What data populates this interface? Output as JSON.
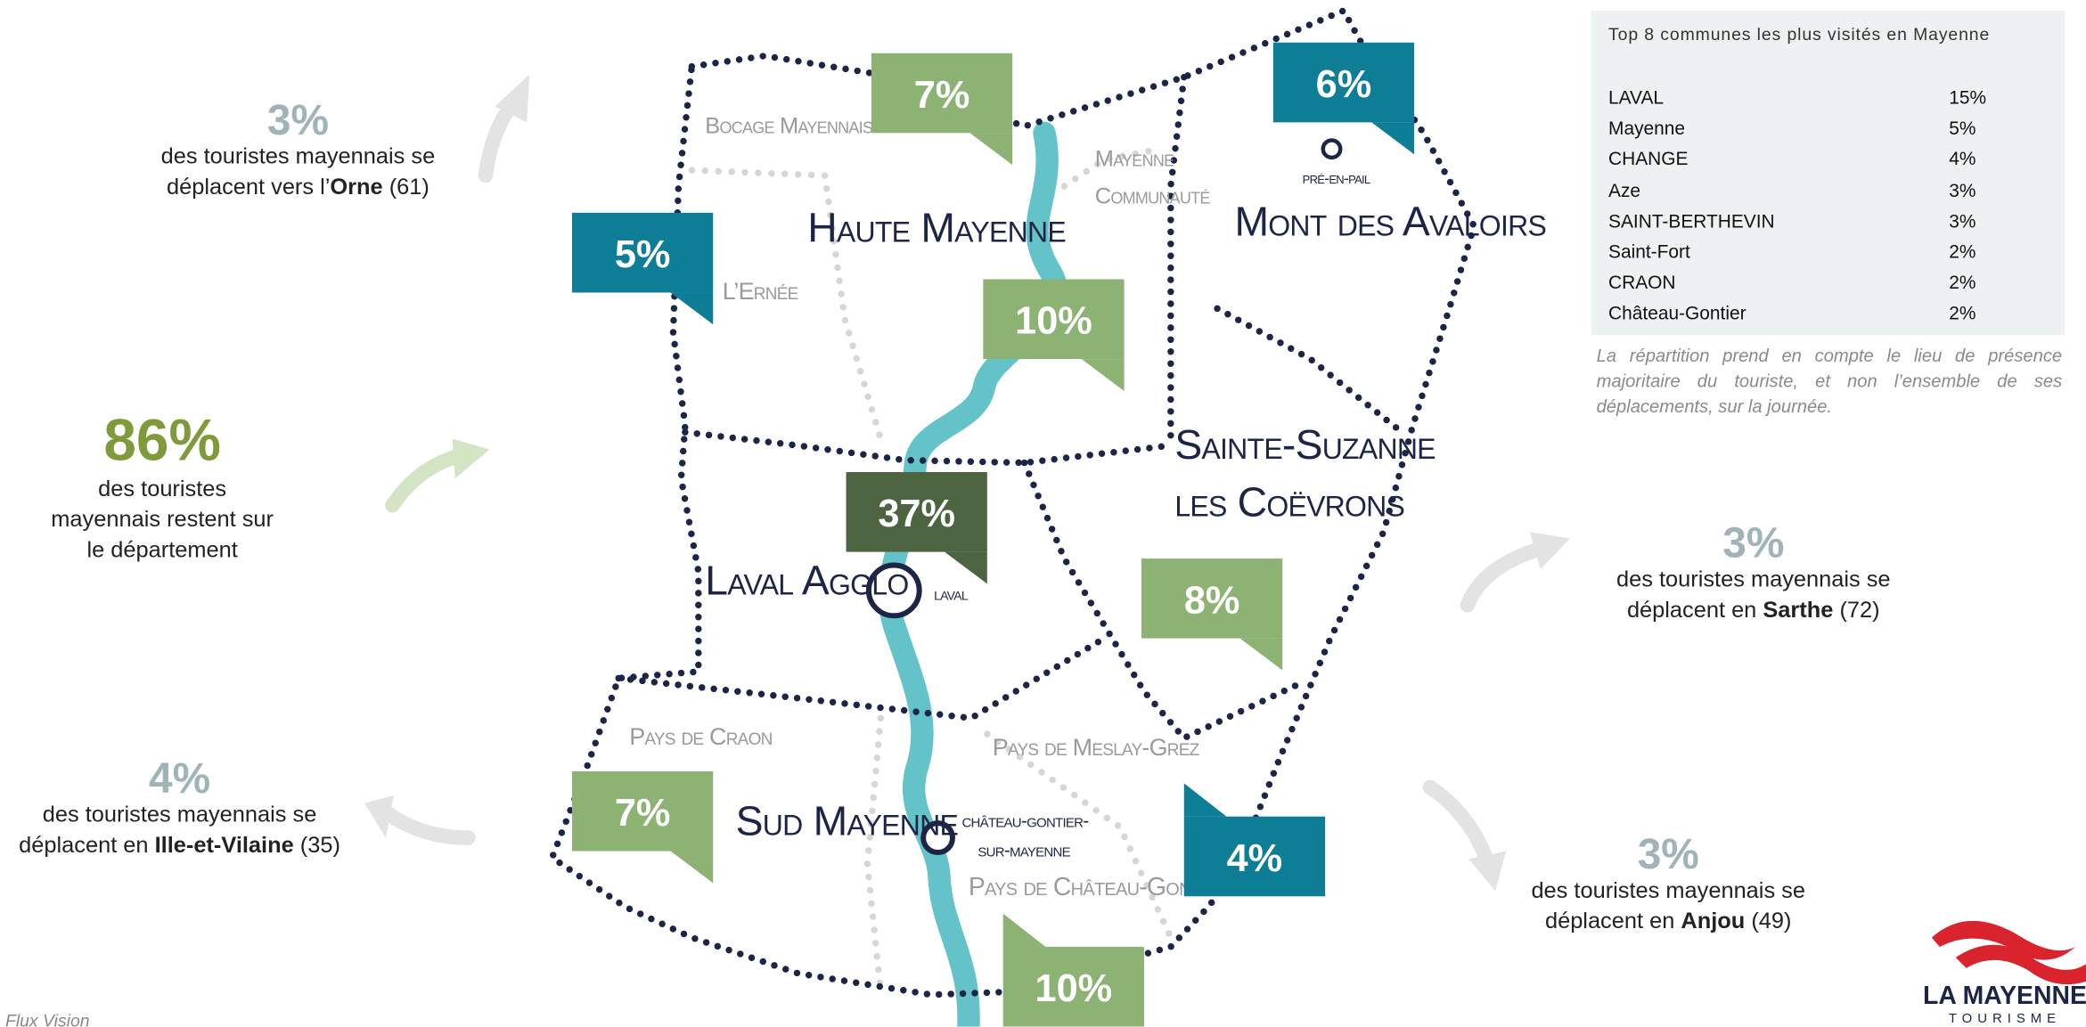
{
  "callouts": [
    {
      "pct": "3%",
      "lines": [
        "des touristes mayennais se",
        "déplacent vers l’"
      ],
      "place": "Orne",
      "code": "(61)"
    },
    {
      "pct": "86%",
      "lines": [
        "des touristes",
        "mayennais restent sur",
        "le département"
      ]
    },
    {
      "pct": "4%",
      "lines": [
        "des touristes mayennais se",
        "déplacent en "
      ],
      "place": "Ille-et-Vilaine",
      "code": "(35)"
    },
    {
      "pct": "3%",
      "lines": [
        "des touristes mayennais se",
        "déplacent en "
      ],
      "place": "Sarthe",
      "code": "(72)"
    },
    {
      "pct": "3%",
      "lines": [
        "des touristes mayennais se",
        "déplacent en "
      ],
      "place": "Anjou",
      "code": "(49)"
    }
  ],
  "map": {
    "labels": {
      "bocage": "Bocage Mayennais",
      "mayenne_communaute": [
        "Mayenne",
        "Communauté"
      ],
      "haute_mayenne": "Haute Mayenne",
      "mont_des_avaloirs": "Mont des Avaloirs",
      "pre_en_pail": "pré-en-pail",
      "ernee": "L’Ernée",
      "sainte_suzanne": [
        "Sainte-Suzanne",
        "les Coëvrons"
      ],
      "laval_agglo": "Laval Agglo",
      "laval": "laval",
      "pays_de_craon": "Pays de Craon",
      "pays_de_meslay": "Pays de Meslay-Grez",
      "sud_mayenne": "Sud Mayenne",
      "chateau_gontier": [
        "château-gontier-",
        "sur-mayenne"
      ],
      "pays_chateau_gontier": "Pays de Château-Gontier"
    },
    "boxes": [
      {
        "text": "7%",
        "color": "#8db374"
      },
      {
        "text": "6%",
        "color": "#0e7d96"
      },
      {
        "text": "5%",
        "color": "#0e7d96"
      },
      {
        "text": "10%",
        "color": "#8db374"
      },
      {
        "text": "37%",
        "color": "#4d6440"
      },
      {
        "text": "8%",
        "color": "#8db374"
      },
      {
        "text": "7%",
        "color": "#8db374"
      },
      {
        "text": "4%",
        "color": "#0e7d96"
      },
      {
        "text": "10%",
        "color": "#8db374"
      }
    ]
  },
  "table": {
    "title": "Top 8 communes les plus visités en Mayenne",
    "rows": [
      [
        "LAVAL",
        "15%"
      ],
      [
        "Mayenne",
        "5%"
      ],
      [
        "CHANGE",
        "4%"
      ],
      [
        "Aze",
        "3%"
      ],
      [
        "SAINT-BERTHEVIN",
        "3%"
      ],
      [
        "Saint-Fort",
        "2%"
      ],
      [
        "CRAON",
        "2%"
      ],
      [
        "Château-Gontier",
        "2%"
      ]
    ],
    "note": "La répartition prend en compte le lieu de présence majoritaire du touriste, et non l’ensemble de ses déplacements, sur la journée."
  },
  "logo": {
    "name": "LA MAYENNE",
    "sub": "TOURISME"
  },
  "source": "Flux Vision"
}
